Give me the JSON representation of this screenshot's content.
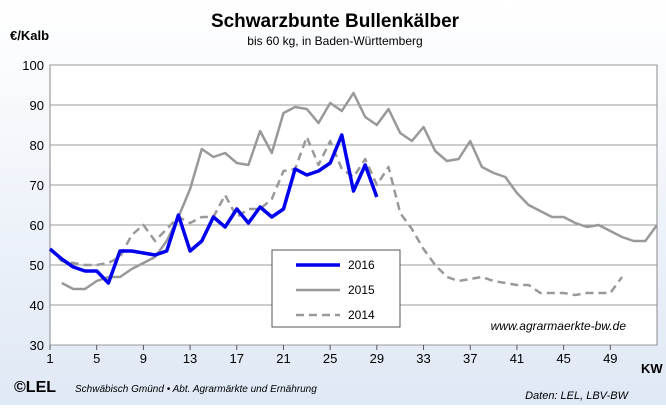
{
  "chart_data": {
    "type": "line",
    "title": "Schwarzbunte Bullenkälber",
    "subtitle": "bis 60 kg, in Baden-Württemberg",
    "y_label": "€/Kalb",
    "x_label": "KW",
    "annotation": "www.agrarmaerkte-bw.de",
    "footer_logo": "©LEL",
    "footer_left": "Schwäbisch Gmünd • Abt. Agrarmärkte und Ernährung",
    "footer_right": "Daten: LEL, LBV-BW",
    "x": [
      1,
      2,
      3,
      4,
      5,
      6,
      7,
      8,
      9,
      10,
      11,
      12,
      13,
      14,
      15,
      16,
      17,
      18,
      19,
      20,
      21,
      22,
      23,
      24,
      25,
      26,
      27,
      28,
      29,
      30,
      31,
      32,
      33,
      34,
      35,
      36,
      37,
      38,
      39,
      40,
      41,
      42,
      43,
      44,
      45,
      46,
      47,
      48,
      49,
      50,
      51,
      52,
      53
    ],
    "xlim": [
      1,
      53
    ],
    "xticks": [
      1,
      5,
      9,
      13,
      17,
      21,
      25,
      29,
      33,
      37,
      41,
      45,
      49
    ],
    "ylim": [
      30,
      100
    ],
    "yticks": [
      30,
      40,
      50,
      60,
      70,
      80,
      90,
      100
    ],
    "grid": true,
    "series": [
      {
        "name": "2016",
        "color": "#0000ee",
        "line_style": "solid",
        "line_width": 3.5,
        "values": [
          54,
          51.5,
          49.5,
          48.5,
          48.5,
          45.5,
          53.5,
          53.5,
          53,
          52.5,
          53.5,
          62.5,
          53.5,
          56,
          62,
          59.5,
          64,
          60.5,
          64.5,
          62,
          64,
          74,
          72.5,
          73.5,
          75.5,
          82.5,
          68.5,
          75,
          67,
          null,
          null,
          null,
          null,
          null,
          null,
          null,
          null,
          null,
          null,
          null,
          null,
          null,
          null,
          null,
          null,
          null,
          null,
          null,
          null,
          null,
          null,
          null,
          null
        ]
      },
      {
        "name": "2015",
        "color": "#999999",
        "line_style": "solid",
        "line_width": 2.5,
        "values": [
          null,
          45.5,
          44,
          44,
          46,
          47,
          47,
          49,
          50.5,
          52,
          56,
          62,
          69,
          79,
          77,
          78,
          75.5,
          75,
          83.5,
          78,
          88,
          89.5,
          89,
          85.5,
          90.5,
          88.5,
          93,
          87,
          85,
          89,
          83,
          81,
          84.5,
          78.5,
          76,
          76.5,
          81,
          74.5,
          73,
          72,
          68,
          65,
          63.5,
          62,
          62,
          60.5,
          59.5,
          60,
          58.5,
          57,
          56,
          56,
          60
        ]
      },
      {
        "name": "2014",
        "color": "#999999",
        "line_style": "dashed",
        "line_width": 2.5,
        "values": [
          54,
          51,
          50.5,
          50,
          50,
          50.5,
          52,
          57.5,
          60,
          56,
          59,
          62,
          60.5,
          62,
          62,
          67.5,
          62,
          64,
          64,
          66.5,
          73.5,
          74,
          82,
          75,
          81,
          74,
          72,
          76.5,
          70,
          74.5,
          63,
          59,
          54,
          50,
          47,
          46,
          46.5,
          47,
          46,
          45.5,
          45,
          45,
          43,
          43,
          43,
          42.5,
          43,
          43,
          43,
          47,
          null,
          null,
          null
        ]
      }
    ]
  }
}
